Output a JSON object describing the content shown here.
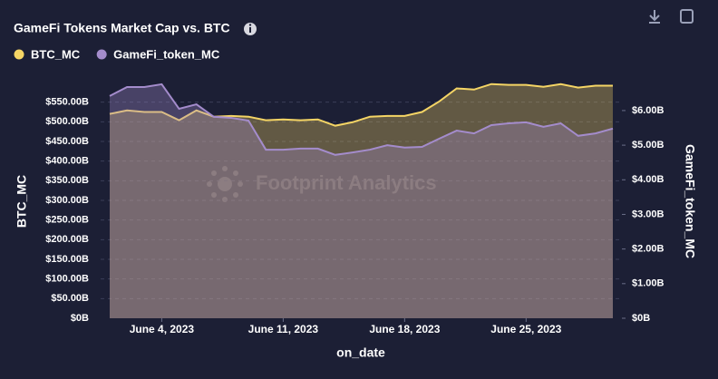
{
  "chart_data": {
    "type": "area",
    "title": "GameFi Tokens Market Cap vs. BTC",
    "watermark": "Footprint Analytics",
    "x_label": "on_date",
    "y_label": "BTC_MC",
    "y2_label": "GameFi_token_MC",
    "x": [
      "2023-06-01",
      "2023-06-02",
      "2023-06-03",
      "2023-06-04",
      "2023-06-05",
      "2023-06-06",
      "2023-06-07",
      "2023-06-08",
      "2023-06-09",
      "2023-06-10",
      "2023-06-11",
      "2023-06-12",
      "2023-06-13",
      "2023-06-14",
      "2023-06-15",
      "2023-06-16",
      "2023-06-17",
      "2023-06-18",
      "2023-06-19",
      "2023-06-20",
      "2023-06-21",
      "2023-06-22",
      "2023-06-23",
      "2023-06-24",
      "2023-06-25",
      "2023-06-26",
      "2023-06-27",
      "2023-06-28",
      "2023-06-29",
      "2023-06-30"
    ],
    "xlim": [
      "2023-06-01",
      "2023-06-30"
    ],
    "xticks": [
      {
        "value": "2023-06-04",
        "label": "June 4, 2023"
      },
      {
        "value": "2023-06-11",
        "label": "June 11, 2023"
      },
      {
        "value": "2023-06-18",
        "label": "June 18, 2023"
      },
      {
        "value": "2023-06-25",
        "label": "June 25, 2023"
      }
    ],
    "series": [
      {
        "name": "BTC_MC",
        "color": "#f5d565",
        "axis": "y",
        "values": [
          520,
          529,
          525,
          525,
          504,
          529,
          513,
          515,
          513,
          504,
          506,
          504,
          506,
          490,
          499,
          513,
          515,
          515,
          525,
          552,
          585,
          582,
          596,
          594,
          594,
          589,
          596,
          587,
          592,
          592
        ]
      },
      {
        "name": "GameFi_token_MC",
        "color": "#a48ccc",
        "axis": "y2",
        "values": [
          6.42,
          6.68,
          6.68,
          6.76,
          6.05,
          6.18,
          5.82,
          5.79,
          5.71,
          4.87,
          4.87,
          4.9,
          4.9,
          4.72,
          4.79,
          4.87,
          5.0,
          4.93,
          4.95,
          5.19,
          5.42,
          5.34,
          5.58,
          5.63,
          5.66,
          5.53,
          5.63,
          5.27,
          5.34,
          5.48
        ]
      }
    ],
    "ylim": [
      0,
      600
    ],
    "yticks": [
      {
        "value": 0,
        "label": "$0B"
      },
      {
        "value": 50,
        "label": "$50.00B"
      },
      {
        "value": 100,
        "label": "$100.00B"
      },
      {
        "value": 150,
        "label": "$150.00B"
      },
      {
        "value": 200,
        "label": "$200.00B"
      },
      {
        "value": 250,
        "label": "$250.00B"
      },
      {
        "value": 300,
        "label": "$300.00B"
      },
      {
        "value": 350,
        "label": "$350.00B"
      },
      {
        "value": 400,
        "label": "$400.00B"
      },
      {
        "value": 450,
        "label": "$450.00B"
      },
      {
        "value": 500,
        "label": "$500.00B"
      },
      {
        "value": 550,
        "label": "$550.00B"
      }
    ],
    "y2lim": [
      0,
      6.81
    ],
    "y2ticks": [
      {
        "value": 0,
        "label": "$0B"
      },
      {
        "value": 1,
        "label": "$1.00B"
      },
      {
        "value": 2,
        "label": "$2.00B"
      },
      {
        "value": 3,
        "label": "$3.00B"
      },
      {
        "value": 4,
        "label": "$4.00B"
      },
      {
        "value": 5,
        "label": "$5.00B"
      },
      {
        "value": 6,
        "label": "$6.00B"
      }
    ],
    "grid": true
  }
}
